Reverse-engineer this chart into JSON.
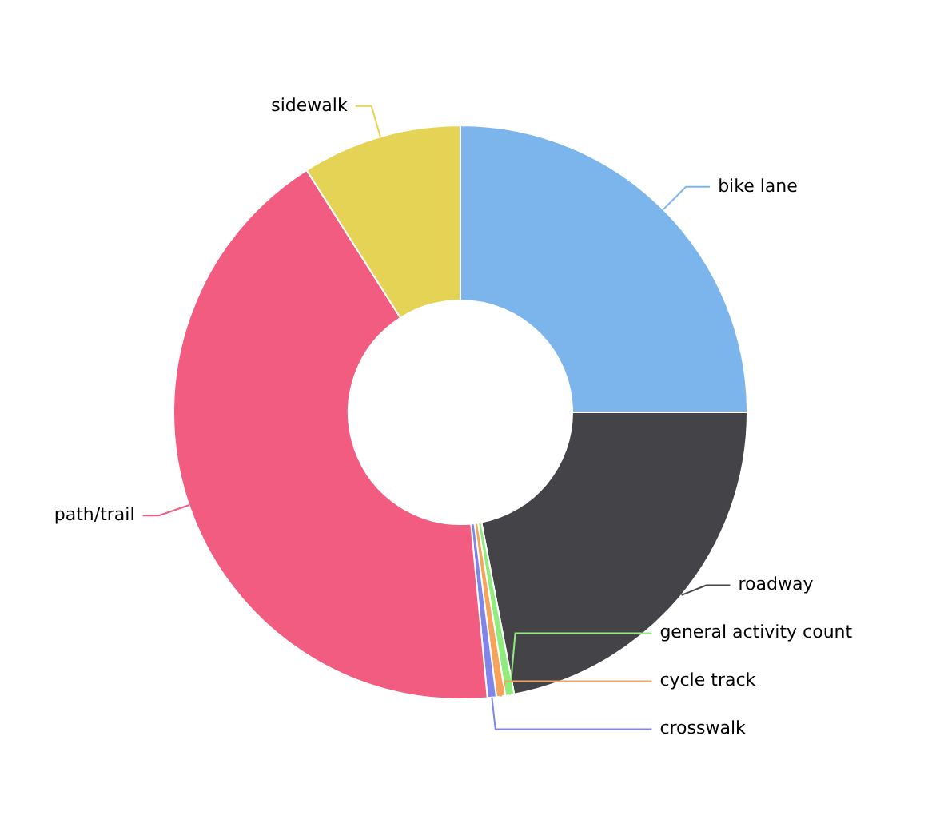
{
  "chart_data": {
    "type": "donut",
    "categories": [
      "bike lane",
      "roadway",
      "general activity count",
      "cycle track",
      "crosswalk",
      "path/trail",
      "sidewalk"
    ],
    "values": [
      25,
      22,
      0.5,
      0.5,
      0.5,
      42.5,
      9
    ],
    "colors": [
      "#7cb5ec",
      "#434348",
      "#90ed7d",
      "#f7a35c",
      "#8085e9",
      "#f15c80",
      "#e4d354"
    ],
    "legend": false
  }
}
